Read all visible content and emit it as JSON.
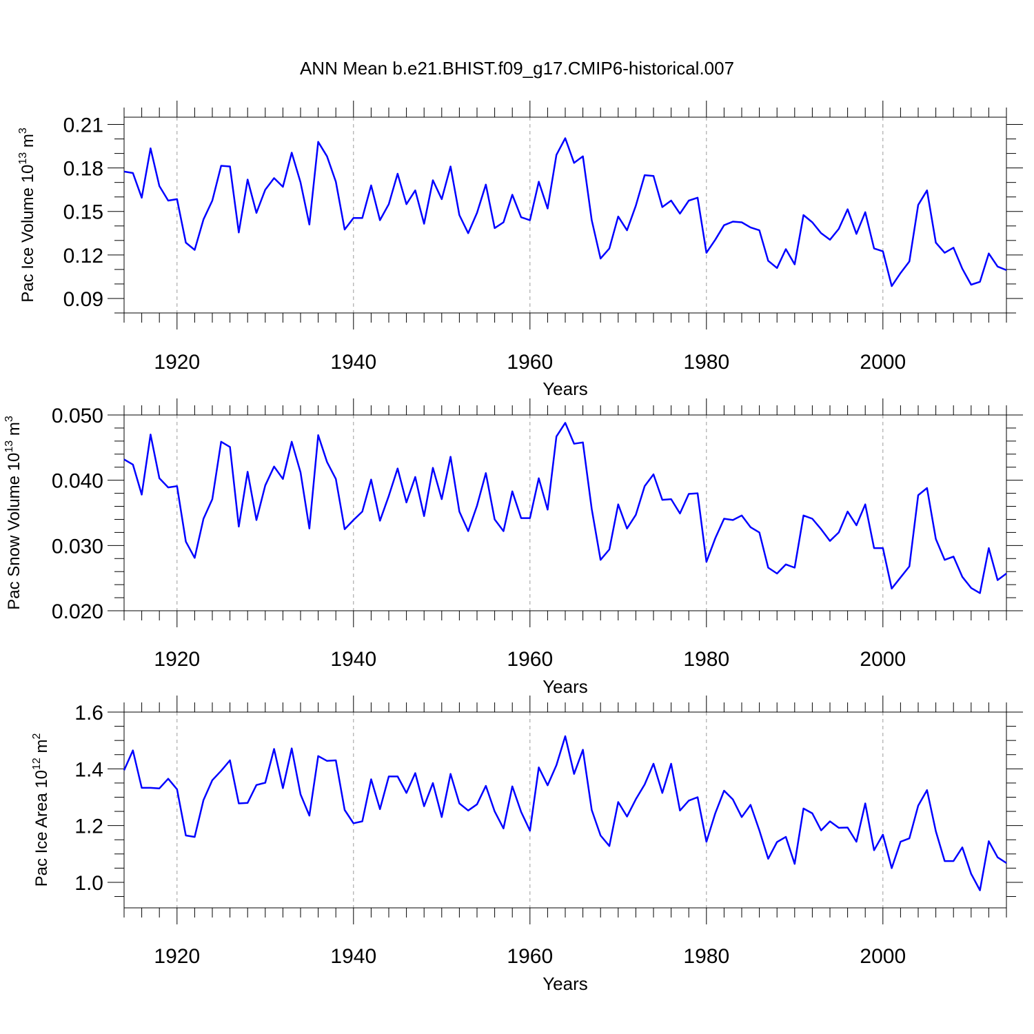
{
  "title": "ANN Mean b.e21.BHIST.f09_g17.CMIP6-historical.007",
  "colors": {
    "line": "#0000ff",
    "grid": "#9a9a9a",
    "axis": "#000000"
  },
  "chart_data": [
    {
      "type": "line",
      "ylabel_main": "Pac Ice Volume 10",
      "ylabel_exp": "13",
      "ylabel_unit": " m",
      "ylabel_unit_exp": "3",
      "xlabel": "Years",
      "xlim": [
        1914,
        2014
      ],
      "ylim": [
        0.08,
        0.215
      ],
      "yticks": [
        0.09,
        0.12,
        0.15,
        0.18,
        0.21
      ],
      "ytick_labels": [
        "0.09",
        "0.12",
        "0.15",
        "0.18",
        "0.21"
      ],
      "yminor_step": 0.01,
      "xticks": [
        1920,
        1940,
        1960,
        1980,
        2000
      ],
      "xtick_labels": [
        "1920",
        "1940",
        "1960",
        "1980",
        "2000"
      ],
      "x_start": 1914,
      "series": [
        {
          "name": "Pac Ice Volume",
          "values": [
            0.1775,
            0.1765,
            0.1595,
            0.1935,
            0.1675,
            0.1575,
            0.1585,
            0.1285,
            0.1235,
            0.1445,
            0.1575,
            0.1815,
            0.181,
            0.1355,
            0.172,
            0.149,
            0.165,
            0.173,
            0.167,
            0.1905,
            0.17,
            0.141,
            0.198,
            0.188,
            0.1705,
            0.1375,
            0.1455,
            0.1455,
            0.168,
            0.144,
            0.155,
            0.176,
            0.155,
            0.1645,
            0.1415,
            0.1715,
            0.1585,
            0.181,
            0.1475,
            0.135,
            0.149,
            0.1685,
            0.1385,
            0.1425,
            0.1615,
            0.146,
            0.144,
            0.1705,
            0.152,
            0.189,
            0.2005,
            0.1835,
            0.188,
            0.144,
            0.1175,
            0.1245,
            0.1465,
            0.137,
            0.154,
            0.175,
            0.1745,
            0.153,
            0.1575,
            0.1485,
            0.1575,
            0.1595,
            0.1215,
            0.1305,
            0.1405,
            0.143,
            0.1425,
            0.139,
            0.137,
            0.116,
            0.111,
            0.124,
            0.1135,
            0.1475,
            0.1425,
            0.135,
            0.1305,
            0.138,
            0.1515,
            0.1345,
            0.1495,
            0.1245,
            0.1225,
            0.0985,
            0.1075,
            0.1155,
            0.1545,
            0.1645,
            0.1285,
            0.1215,
            0.125,
            0.1105,
            0.0995,
            0.1015,
            0.121,
            0.112,
            0.1095
          ]
        }
      ]
    },
    {
      "type": "line",
      "ylabel_main": "Pac Snow Volume 10",
      "ylabel_exp": "13",
      "ylabel_unit": " m",
      "ylabel_unit_exp": "3",
      "xlabel": "Years",
      "xlim": [
        1914,
        2014
      ],
      "ylim": [
        0.02,
        0.05
      ],
      "yticks": [
        0.02,
        0.03,
        0.04,
        0.05
      ],
      "ytick_labels": [
        "0.020",
        "0.030",
        "0.040",
        "0.050"
      ],
      "yminor_step": 0.002,
      "xticks": [
        1920,
        1940,
        1960,
        1980,
        2000
      ],
      "xtick_labels": [
        "1920",
        "1940",
        "1960",
        "1980",
        "2000"
      ],
      "x_start": 1914,
      "series": [
        {
          "name": "Pac Snow Volume",
          "values": [
            0.0432,
            0.0424,
            0.0378,
            0.047,
            0.0403,
            0.0389,
            0.0391,
            0.0306,
            0.0281,
            0.0341,
            0.0371,
            0.0459,
            0.0451,
            0.0329,
            0.0413,
            0.0339,
            0.0392,
            0.0421,
            0.0402,
            0.0459,
            0.0412,
            0.0326,
            0.0469,
            0.0428,
            0.0402,
            0.0325,
            0.0339,
            0.0352,
            0.0401,
            0.0338,
            0.0376,
            0.0418,
            0.0366,
            0.0405,
            0.0345,
            0.0419,
            0.0371,
            0.0436,
            0.0352,
            0.0322,
            0.0361,
            0.0411,
            0.034,
            0.0322,
            0.0383,
            0.0342,
            0.0342,
            0.0403,
            0.0355,
            0.0467,
            0.0488,
            0.0456,
            0.0458,
            0.0356,
            0.0278,
            0.0294,
            0.0363,
            0.0326,
            0.0347,
            0.0391,
            0.0409,
            0.037,
            0.0371,
            0.0349,
            0.0379,
            0.038,
            0.0275,
            0.0311,
            0.0341,
            0.0339,
            0.0346,
            0.0328,
            0.032,
            0.0266,
            0.0257,
            0.0271,
            0.0266,
            0.0346,
            0.0341,
            0.0325,
            0.0307,
            0.032,
            0.0352,
            0.0331,
            0.0363,
            0.0296,
            0.0296,
            0.0234,
            0.0251,
            0.0268,
            0.0377,
            0.0388,
            0.031,
            0.0278,
            0.0283,
            0.0252,
            0.0235,
            0.0227,
            0.0296,
            0.0247,
            0.0257
          ]
        }
      ]
    },
    {
      "type": "line",
      "ylabel_main": "Pac Ice Area 10",
      "ylabel_exp": "12",
      "ylabel_unit": " m",
      "ylabel_unit_exp": "2",
      "xlabel": "Years",
      "xlim": [
        1914,
        2014
      ],
      "ylim": [
        0.91,
        1.6
      ],
      "yticks": [
        1.0,
        1.2,
        1.4,
        1.6
      ],
      "ytick_labels": [
        "1.0",
        "1.2",
        "1.4",
        "1.6"
      ],
      "yminor_step": 0.05,
      "xticks": [
        1920,
        1940,
        1960,
        1980,
        2000
      ],
      "xtick_labels": [
        "1920",
        "1940",
        "1960",
        "1980",
        "2000"
      ],
      "x_start": 1914,
      "series": [
        {
          "name": "Pac Ice Area",
          "values": [
            1.395,
            1.465,
            1.333,
            1.333,
            1.331,
            1.365,
            1.328,
            1.165,
            1.16,
            1.29,
            1.36,
            1.393,
            1.43,
            1.278,
            1.28,
            1.343,
            1.351,
            1.47,
            1.332,
            1.472,
            1.31,
            1.235,
            1.445,
            1.428,
            1.43,
            1.255,
            1.208,
            1.215,
            1.363,
            1.258,
            1.373,
            1.373,
            1.315,
            1.385,
            1.268,
            1.35,
            1.23,
            1.382,
            1.278,
            1.253,
            1.275,
            1.34,
            1.25,
            1.19,
            1.338,
            1.248,
            1.182,
            1.405,
            1.342,
            1.413,
            1.515,
            1.382,
            1.467,
            1.255,
            1.165,
            1.128,
            1.283,
            1.232,
            1.293,
            1.345,
            1.418,
            1.315,
            1.418,
            1.253,
            1.288,
            1.3,
            1.143,
            1.243,
            1.323,
            1.292,
            1.23,
            1.273,
            1.183,
            1.083,
            1.142,
            1.16,
            1.065,
            1.26,
            1.243,
            1.183,
            1.215,
            1.192,
            1.193,
            1.143,
            1.278,
            1.113,
            1.168,
            1.05,
            1.143,
            1.155,
            1.27,
            1.325,
            1.18,
            1.075,
            1.075,
            1.123,
            1.03,
            0.972,
            1.145,
            1.088,
            1.068
          ]
        }
      ]
    }
  ]
}
